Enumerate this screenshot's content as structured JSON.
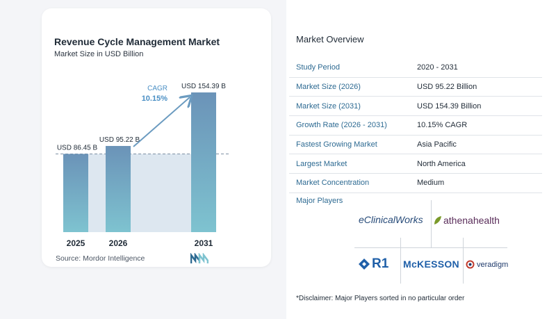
{
  "chart_data": {
    "type": "bar",
    "title": "Revenue Cycle Management Market",
    "subtitle": "Market Size in USD Billion",
    "categories": [
      "2025",
      "2026",
      "2031"
    ],
    "values": [
      86.45,
      95.22,
      154.39
    ],
    "value_labels": [
      "USD 86.45 B",
      "USD 95.22 B",
      "USD 154.39 B"
    ],
    "cagr_label": "CAGR",
    "cagr_value": "10.15%",
    "colors": {
      "bar_top": "#6b93b8",
      "bar_bottom": "#7ec3d0",
      "shade": "#dde7f0",
      "arrow": "#6b9bc0",
      "cagr": "#4a8fc4"
    }
  },
  "source": "Source:  Mordor Intelligence",
  "overview": {
    "title": "Market Overview",
    "rows": [
      {
        "label": "Study Period",
        "value": "2020 - 2031"
      },
      {
        "label": "Market Size (2026)",
        "value": "USD 95.22 Billion"
      },
      {
        "label": "Market Size (2031)",
        "value": "USD 154.39 Billion"
      },
      {
        "label": "Growth Rate (2026 - 2031)",
        "value": "10.15% CAGR"
      },
      {
        "label": "Fastest Growing Market",
        "value": "Asia Pacific"
      },
      {
        "label": "Largest Market",
        "value": "North America"
      },
      {
        "label": "Market Concentration",
        "value": "Medium"
      }
    ]
  },
  "players": {
    "title": "Major Players",
    "eclinical": "eClinicalWorks",
    "athena": "athenahealth",
    "r1": "R1",
    "mckesson": "McKESSON",
    "veradigm": "veradigm"
  },
  "disclaimer": "*Disclaimer: Major Players sorted in no particular order"
}
